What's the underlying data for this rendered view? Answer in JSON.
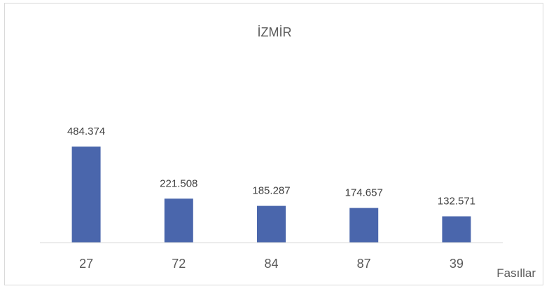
{
  "chart_data": {
    "type": "bar",
    "title": "İZMİR",
    "categories": [
      "27",
      "72",
      "84",
      "87",
      "39"
    ],
    "values": [
      484.374,
      221.508,
      185.287,
      174.657,
      132.571
    ],
    "data_labels": [
      "484.374",
      "221.508",
      "185.287",
      "174.657",
      "132.571"
    ],
    "xlabel": "Fasıllar",
    "ylabel": "",
    "ylim": [
      0,
      500
    ],
    "grid": false,
    "legend": "none",
    "bar_color": "#4a66ac"
  }
}
